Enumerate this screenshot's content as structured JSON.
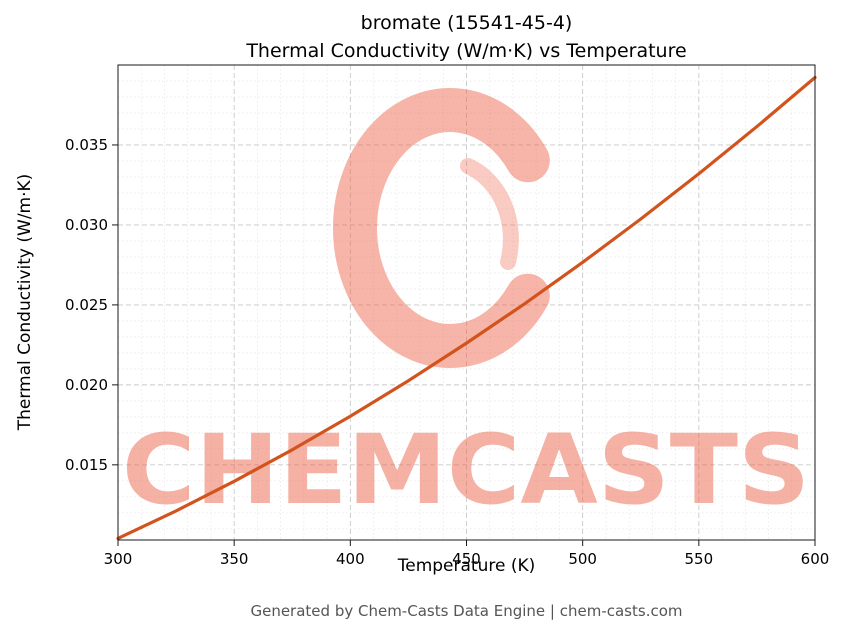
{
  "header": {
    "title_line1": "bromate (15541-45-4)",
    "title_line2": "Thermal Conductivity (W/m·K) vs Temperature"
  },
  "axes": {
    "xlabel": "Temperature (K)",
    "ylabel": "Thermal Conductivity (W/m·K)"
  },
  "footer": {
    "text": "Generated by Chem-Casts Data Engine | chem-casts.com"
  },
  "watermark": {
    "text": "CHEMCASTS",
    "color": "#ec644a",
    "text_opacity": 0.5,
    "logo_opacity": 0.48
  },
  "chart_data": {
    "type": "line",
    "title": "bromate (15541-45-4) Thermal Conductivity (W/m·K) vs Temperature",
    "xlabel": "Temperature (K)",
    "ylabel": "Thermal Conductivity (W/m·K)",
    "xlim": [
      300,
      600
    ],
    "ylim": [
      0.0103,
      0.04
    ],
    "xticks": [
      300,
      350,
      400,
      450,
      500,
      550,
      600
    ],
    "xtick_labels": [
      "300",
      "350",
      "400",
      "450",
      "500",
      "550",
      "600"
    ],
    "yticks": [
      0.015,
      0.02,
      0.025,
      0.03,
      0.035
    ],
    "ytick_labels": [
      "0.015",
      "0.020",
      "0.025",
      "0.030",
      "0.035"
    ],
    "grid": {
      "major": true,
      "minor": true,
      "x_minor_step": 10,
      "y_minor_step": 0.001
    },
    "legend": "none",
    "line_color": "#d2531c",
    "line_width": 3.2,
    "series": [
      {
        "name": "Thermal Conductivity",
        "x": [
          300,
          325,
          350,
          375,
          400,
          425,
          450,
          475,
          500,
          525,
          550,
          575,
          600
        ],
        "y": [
          0.0104,
          0.01212,
          0.01397,
          0.01594,
          0.01804,
          0.02026,
          0.02261,
          0.02507,
          0.02766,
          0.03037,
          0.0332,
          0.03615,
          0.03922
        ]
      }
    ]
  }
}
